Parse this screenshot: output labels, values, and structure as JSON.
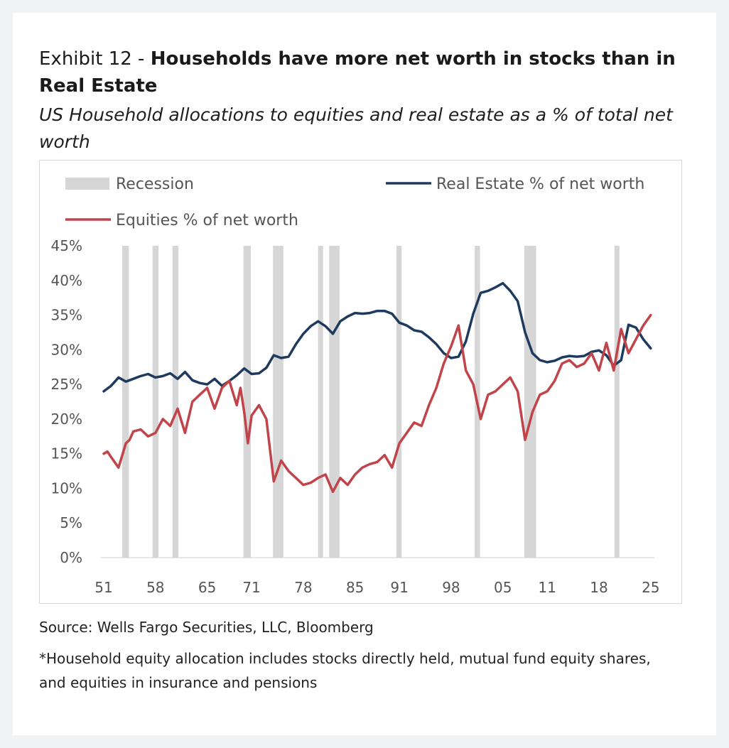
{
  "header": {
    "exhibit": "Exhibit 12 - ",
    "title": "Households have more net worth in stocks than in Real Estate",
    "subtitle": "US Household allocations to equities and real estate as a % of total net worth"
  },
  "footer": {
    "source": "Source: Wells Fargo Securities, LLC, Bloomberg",
    "note": "*Household equity allocation includes stocks directly held, mutual fund equity shares, and equities in insurance and pensions"
  },
  "colors": {
    "real_estate": "#1f3a5f",
    "equities": "#c0444a",
    "recession": "#d6d6d6"
  },
  "chart_data": {
    "type": "line",
    "title": "US Household allocations to equities and real estate as a % of total net worth",
    "xlabel": "",
    "ylabel": "",
    "xlim": [
      1951,
      2025.5
    ],
    "ylim": [
      0,
      45
    ],
    "yticks": [
      0,
      5,
      10,
      15,
      20,
      25,
      30,
      35,
      40,
      45
    ],
    "ytick_labels": [
      "0%",
      "5%",
      "10%",
      "15%",
      "20%",
      "25%",
      "30%",
      "35%",
      "40%",
      "45%"
    ],
    "xticks": [
      1951,
      1958,
      1965,
      1971,
      1978,
      1985,
      1991,
      1998,
      2005,
      2011,
      2018,
      2025
    ],
    "xtick_labels": [
      "51",
      "58",
      "65",
      "71",
      "78",
      "85",
      "91",
      "98",
      "05",
      "11",
      "18",
      "25"
    ],
    "legend": [
      {
        "label": "Recession",
        "kind": "bar"
      },
      {
        "label": "Real Estate % of net worth",
        "kind": "line"
      },
      {
        "label": "Equities % of net worth",
        "kind": "line"
      }
    ],
    "legend_position": "top",
    "recessions": [
      [
        1953.5,
        1954.4
      ],
      [
        1957.6,
        1958.4
      ],
      [
        1960.3,
        1961.1
      ],
      [
        1969.9,
        1970.9
      ],
      [
        1973.9,
        1975.3
      ],
      [
        1980.0,
        1980.6
      ],
      [
        1981.5,
        1982.9
      ],
      [
        1990.6,
        1991.3
      ],
      [
        2001.2,
        2001.9
      ],
      [
        2007.9,
        2009.5
      ],
      [
        2020.1,
        2020.5
      ]
    ],
    "series": [
      {
        "name": "Real Estate % of net worth",
        "x": [
          1951,
          1952,
          1953,
          1954,
          1955,
          1956,
          1957,
          1958,
          1959,
          1960,
          1961,
          1962,
          1963,
          1964,
          1965,
          1966,
          1967,
          1968,
          1969,
          1970,
          1971,
          1972,
          1973,
          1974,
          1975,
          1976,
          1977,
          1978,
          1979,
          1980,
          1981,
          1982,
          1983,
          1984,
          1985,
          1986,
          1987,
          1988,
          1989,
          1990,
          1991,
          1992,
          1993,
          1994,
          1995,
          1996,
          1997,
          1998,
          1999,
          2000,
          2001,
          2002,
          2003,
          2004,
          2005,
          2006,
          2007,
          2008,
          2009,
          2010,
          2011,
          2012,
          2013,
          2014,
          2015,
          2016,
          2017,
          2018,
          2019,
          2020,
          2021,
          2022,
          2023,
          2024,
          2025
        ],
        "values": [
          24.0,
          24.8,
          26.0,
          25.4,
          25.8,
          26.2,
          26.5,
          26.0,
          26.2,
          26.6,
          25.8,
          26.8,
          25.6,
          25.2,
          25.0,
          25.8,
          24.8,
          25.5,
          26.3,
          27.3,
          26.5,
          26.6,
          27.4,
          29.2,
          28.8,
          29.0,
          30.8,
          32.3,
          33.4,
          34.1,
          33.4,
          32.3,
          34.1,
          34.8,
          35.3,
          35.2,
          35.3,
          35.6,
          35.6,
          35.2,
          33.9,
          33.5,
          32.8,
          32.6,
          31.8,
          30.8,
          29.5,
          28.8,
          29.0,
          31.2,
          35.2,
          38.2,
          38.5,
          39.0,
          39.6,
          38.5,
          37.0,
          32.5,
          29.5,
          28.5,
          28.2,
          28.4,
          28.9,
          29.1,
          29.0,
          29.1,
          29.7,
          29.9,
          29.2,
          27.7,
          28.5,
          33.6,
          33.2,
          31.5,
          30.2
        ]
      },
      {
        "name": "Equities % of net worth",
        "x": [
          1951,
          1951.5,
          1952,
          1953,
          1954,
          1954.5,
          1955,
          1956,
          1957,
          1958,
          1959,
          1960,
          1961,
          1962,
          1963,
          1964,
          1965,
          1966,
          1967,
          1968,
          1969,
          1969.5,
          1970,
          1970.5,
          1971,
          1972,
          1973,
          1974,
          1975,
          1976,
          1977,
          1978,
          1979,
          1980,
          1981,
          1982,
          1983,
          1984,
          1985,
          1986,
          1987,
          1988,
          1989,
          1990,
          1991,
          1992,
          1993,
          1994,
          1995,
          1996,
          1997,
          1998,
          1999,
          2000,
          2001,
          2002,
          2003,
          2004,
          2005,
          2006,
          2007,
          2008,
          2009,
          2010,
          2011,
          2012,
          2013,
          2014,
          2015,
          2016,
          2017,
          2018,
          2019,
          2020,
          2021,
          2022,
          2023,
          2024,
          2025
        ],
        "values": [
          15.0,
          15.3,
          14.5,
          13.0,
          16.5,
          17.0,
          18.2,
          18.5,
          17.5,
          18.0,
          20.0,
          19.0,
          21.5,
          18.0,
          22.5,
          23.5,
          24.5,
          21.5,
          24.5,
          25.5,
          22.0,
          24.5,
          21.0,
          16.5,
          20.5,
          22.0,
          20.0,
          11.0,
          14.0,
          12.5,
          11.5,
          10.5,
          10.8,
          11.5,
          12.0,
          9.5,
          11.5,
          10.5,
          12.0,
          13.0,
          13.5,
          13.8,
          14.8,
          13.0,
          16.5,
          18.0,
          19.5,
          19.0,
          22.0,
          24.5,
          28.0,
          30.5,
          33.5,
          27.0,
          25.0,
          20.0,
          23.5,
          24.0,
          25.0,
          26.0,
          24.0,
          17.0,
          21.0,
          23.5,
          24.0,
          25.5,
          28.0,
          28.5,
          27.5,
          28.0,
          29.5,
          27.0,
          31.0,
          27.0,
          33.0,
          29.5,
          31.5,
          33.5,
          35.0
        ]
      }
    ]
  }
}
